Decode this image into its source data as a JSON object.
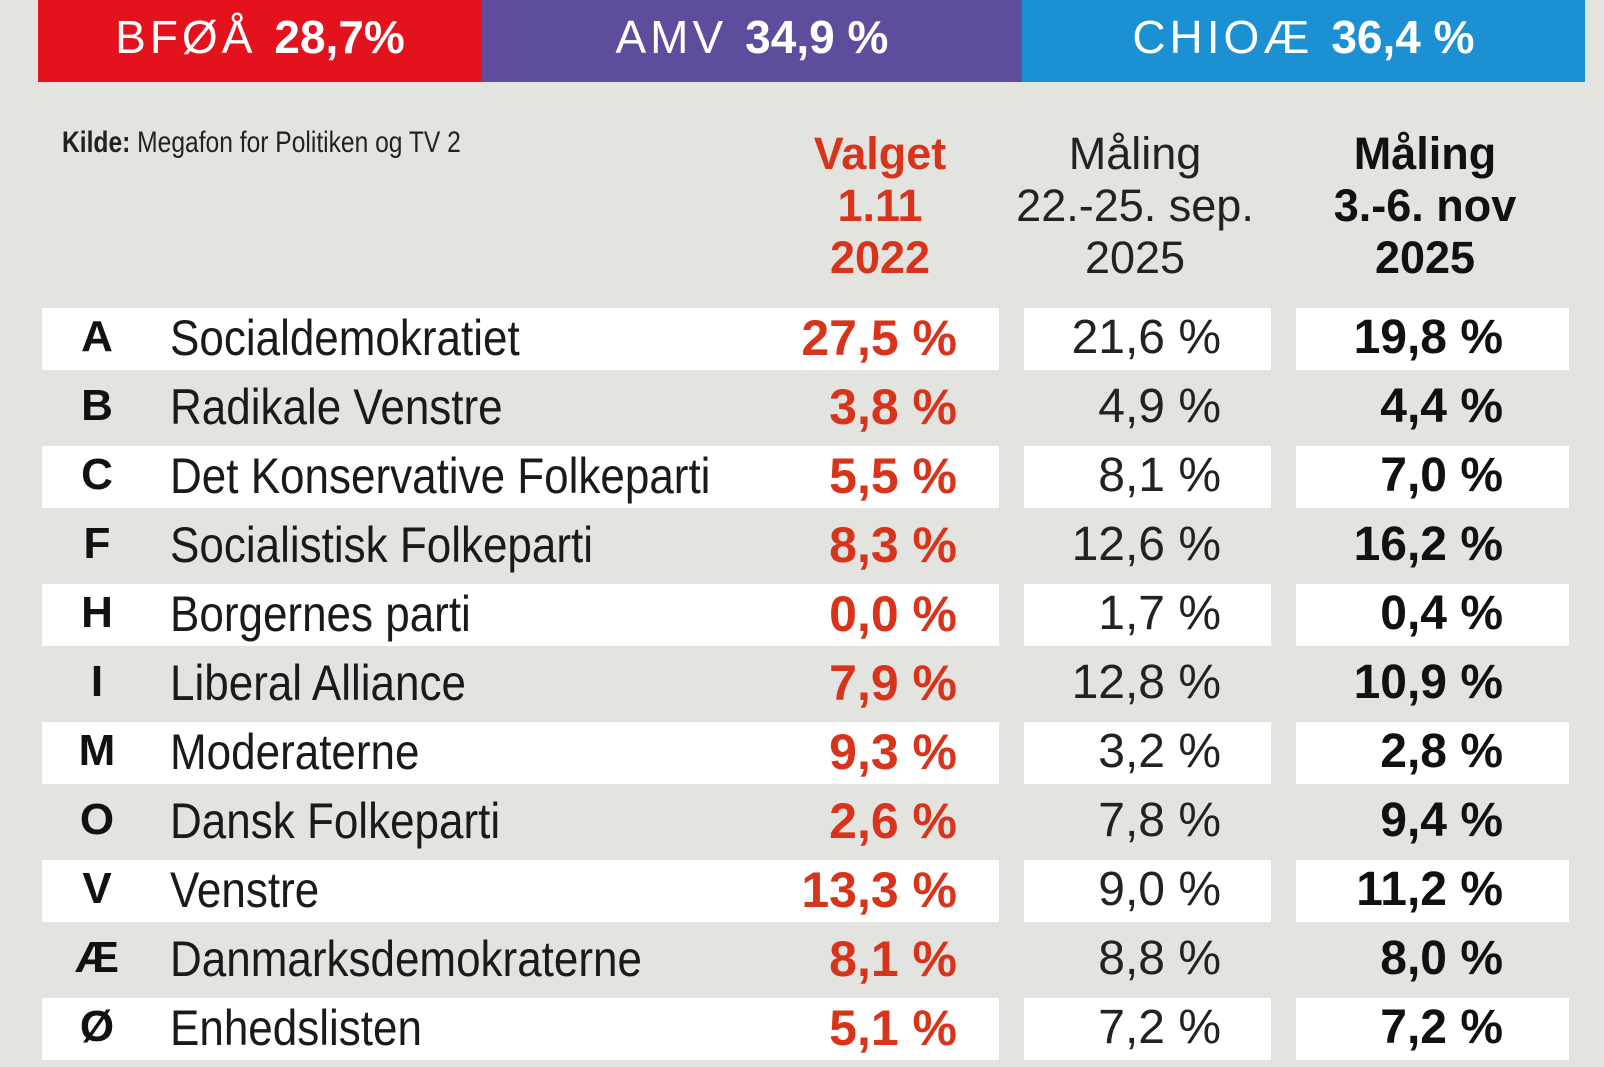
{
  "blocs": [
    {
      "label": "BFØÅ",
      "value": "28,7%",
      "share": 28.7,
      "color": "#e3121c"
    },
    {
      "label": "AMV",
      "value": "34,9 %",
      "share": 34.9,
      "color": "#5e4c9c"
    },
    {
      "label": "CHIOÆ",
      "value": "36,4 %",
      "share": 36.4,
      "color": "#1b90d2"
    }
  ],
  "source": {
    "label": "Kilde:",
    "text": "Megafon for Politiken og TV 2"
  },
  "columns": [
    {
      "lines": [
        "Valget",
        "1.11",
        "2022"
      ]
    },
    {
      "lines": [
        "Måling",
        "22.-25. sep.",
        "2025"
      ]
    },
    {
      "lines": [
        "Måling",
        "3.-6. nov",
        "2025"
      ]
    }
  ],
  "chart_data": {
    "type": "table",
    "columns": [
      "Valget 1.11 2022",
      "Måling 22.-25. sep. 2025",
      "Måling 3.-6. nov 2025"
    ],
    "rows": [
      {
        "letter": "A",
        "party": "Socialdemokratiet",
        "values": [
          "27,5 %",
          "21,6 %",
          "19,8 %"
        ]
      },
      {
        "letter": "B",
        "party": "Radikale Venstre",
        "values": [
          "3,8 %",
          "4,9 %",
          "4,4 %"
        ]
      },
      {
        "letter": "C",
        "party": "Det Konservative Folkeparti",
        "values": [
          "5,5 %",
          "8,1 %",
          "7,0 %"
        ]
      },
      {
        "letter": "F",
        "party": "Socialistisk Folkeparti",
        "values": [
          "8,3 %",
          "12,6 %",
          "16,2 %"
        ]
      },
      {
        "letter": "H",
        "party": "Borgernes parti",
        "values": [
          "0,0 %",
          "1,7 %",
          "0,4 %"
        ]
      },
      {
        "letter": "I",
        "party": "Liberal Alliance",
        "values": [
          "7,9 %",
          "12,8 %",
          "10,9 %"
        ]
      },
      {
        "letter": "M",
        "party": "Moderaterne",
        "values": [
          "9,3 %",
          "3,2 %",
          "2,8 %"
        ]
      },
      {
        "letter": "O",
        "party": "Dansk Folkeparti",
        "values": [
          "2,6 %",
          "7,8 %",
          "9,4 %"
        ]
      },
      {
        "letter": "V",
        "party": "Venstre",
        "values": [
          "13,3 %",
          "9,0 %",
          "11,2 %"
        ]
      },
      {
        "letter": "Æ",
        "party": "Danmarksdemokraterne",
        "values": [
          "8,1 %",
          "8,8 %",
          "8,0 %"
        ]
      },
      {
        "letter": "Ø",
        "party": "Enhedslisten",
        "values": [
          "5,1 %",
          "7,2 %",
          "7,2 %"
        ]
      }
    ]
  }
}
